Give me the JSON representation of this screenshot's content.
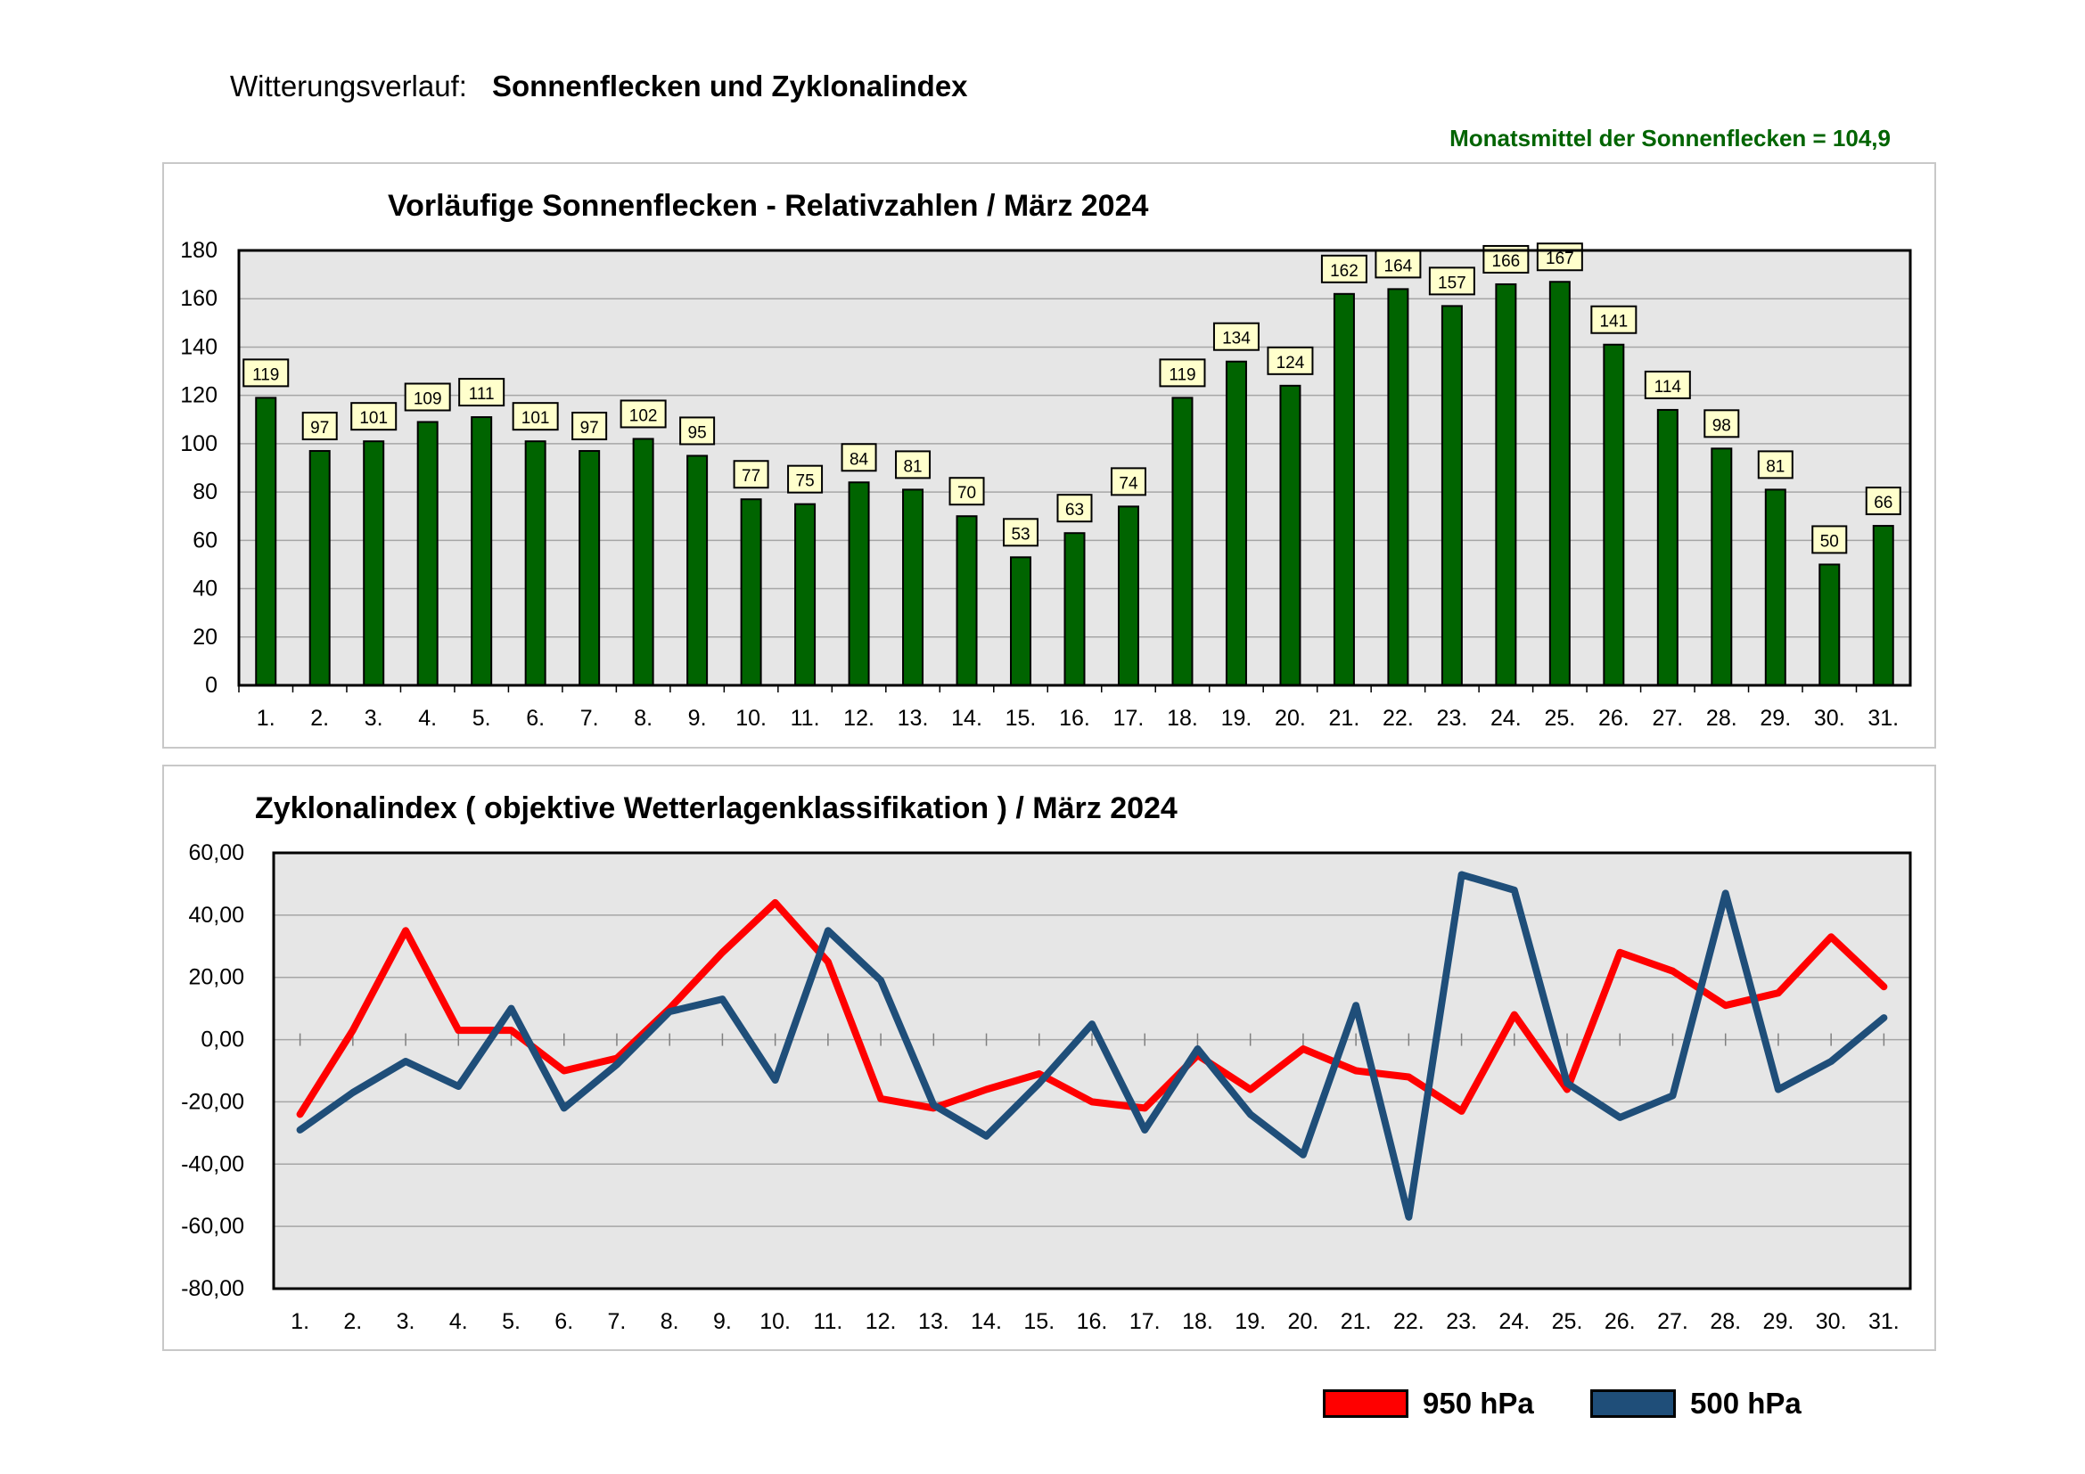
{
  "page": {
    "title_label": "Witterungsverlauf:",
    "title": "Sonnenflecken und Zyklonalindex",
    "monthly_mean": "Monatsmittel der Sonnenflecken = 104,9"
  },
  "colors": {
    "bar": "#006400",
    "label_box": "#FFFFCC",
    "plot_bg": "#E6E6E6",
    "grid": "#A6A6A6",
    "series_950": "#FF0000",
    "series_500": "#1F4E79"
  },
  "legend": {
    "s950": "950 hPa",
    "s500": "500 hPa"
  },
  "chart_data": [
    {
      "type": "bar",
      "title": "Vorläufige Sonnenflecken - Relativzahlen  /   März 2024",
      "categories": [
        "1.",
        "2.",
        "3.",
        "4.",
        "5.",
        "6.",
        "7.",
        "8.",
        "9.",
        "10.",
        "11.",
        "12.",
        "13.",
        "14.",
        "15.",
        "16.",
        "17.",
        "18.",
        "19.",
        "20.",
        "21.",
        "22.",
        "23.",
        "24.",
        "25.",
        "26.",
        "27.",
        "28.",
        "29.",
        "30.",
        "31."
      ],
      "values": [
        119,
        97,
        101,
        109,
        111,
        101,
        97,
        102,
        95,
        77,
        75,
        84,
        81,
        70,
        53,
        63,
        74,
        119,
        134,
        124,
        162,
        164,
        157,
        166,
        167,
        141,
        114,
        98,
        81,
        50,
        66
      ],
      "yticks": [
        "0",
        "20",
        "40",
        "60",
        "80",
        "100",
        "120",
        "140",
        "160",
        "180"
      ],
      "ylim": [
        0,
        180
      ],
      "xlabel": "",
      "ylabel": ""
    },
    {
      "type": "line",
      "title": "Zyklonalindex  ( objektive Wetterlagenklassifikation )  /  März 2024",
      "categories": [
        "1.",
        "2.",
        "3.",
        "4.",
        "5.",
        "6.",
        "7.",
        "8.",
        "9.",
        "10.",
        "11.",
        "12.",
        "13.",
        "14.",
        "15.",
        "16.",
        "17.",
        "18.",
        "19.",
        "20.",
        "21.",
        "22.",
        "23.",
        "24.",
        "25.",
        "26.",
        "27.",
        "28.",
        "29.",
        "30.",
        "31."
      ],
      "series": [
        {
          "name": "950 hPa",
          "values": [
            -24,
            3,
            35,
            3,
            3,
            -10,
            -6,
            10,
            28,
            44,
            25,
            -19,
            -22,
            -16,
            -11,
            -20,
            -22,
            -5,
            -16,
            -3,
            -10,
            -12,
            -23,
            8,
            -16,
            28,
            22,
            11,
            15,
            33,
            17
          ]
        },
        {
          "name": "500 hPa",
          "values": [
            -29,
            -17,
            -7,
            -15,
            10,
            -22,
            -8,
            9,
            13,
            -13,
            35,
            19,
            -21,
            -31,
            -14,
            5,
            -29,
            -3,
            -24,
            -37,
            11,
            -57,
            53,
            48,
            -14,
            -25,
            -18,
            47,
            -16,
            -7,
            7
          ]
        }
      ],
      "yticks": [
        "-80,00",
        "-60,00",
        "-40,00",
        "-20,00",
        "0,00",
        "20,00",
        "40,00",
        "60,00"
      ],
      "ylim": [
        -80,
        60
      ],
      "xlabel": "",
      "ylabel": ""
    }
  ]
}
